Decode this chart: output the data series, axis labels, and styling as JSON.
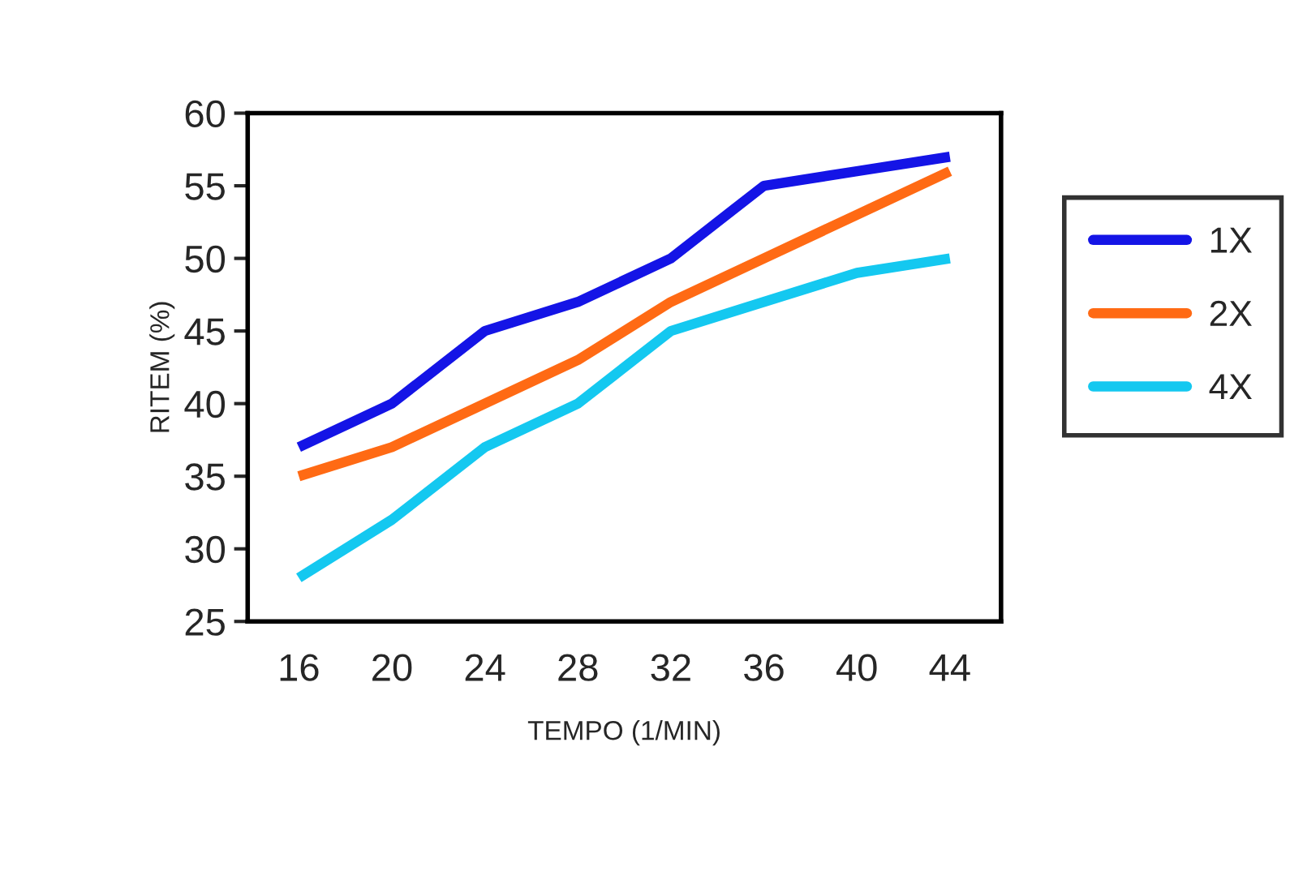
{
  "chart_data": {
    "type": "line",
    "xlabel": "TEMPO (1/MIN)",
    "ylabel": "RITEM (%)",
    "categories": [
      "16",
      "20",
      "24",
      "28",
      "32",
      "36",
      "40",
      "44"
    ],
    "series": [
      {
        "name": "1X",
        "color": "#1414e6",
        "values": [
          37,
          40,
          45,
          47,
          50,
          55,
          56,
          57
        ]
      },
      {
        "name": "2X",
        "color": "#ff6a14",
        "values": [
          35,
          37,
          40,
          43,
          47,
          50,
          53,
          56
        ]
      },
      {
        "name": "4X",
        "color": "#14c8f0",
        "values": [
          28,
          32,
          37,
          40,
          45,
          47,
          49,
          50
        ]
      }
    ],
    "ylim": [
      25,
      60
    ],
    "yticks": [
      25,
      30,
      35,
      40,
      45,
      50,
      55,
      60
    ],
    "grid": false,
    "legend": "right",
    "marker": "none",
    "line_style": "solid"
  }
}
